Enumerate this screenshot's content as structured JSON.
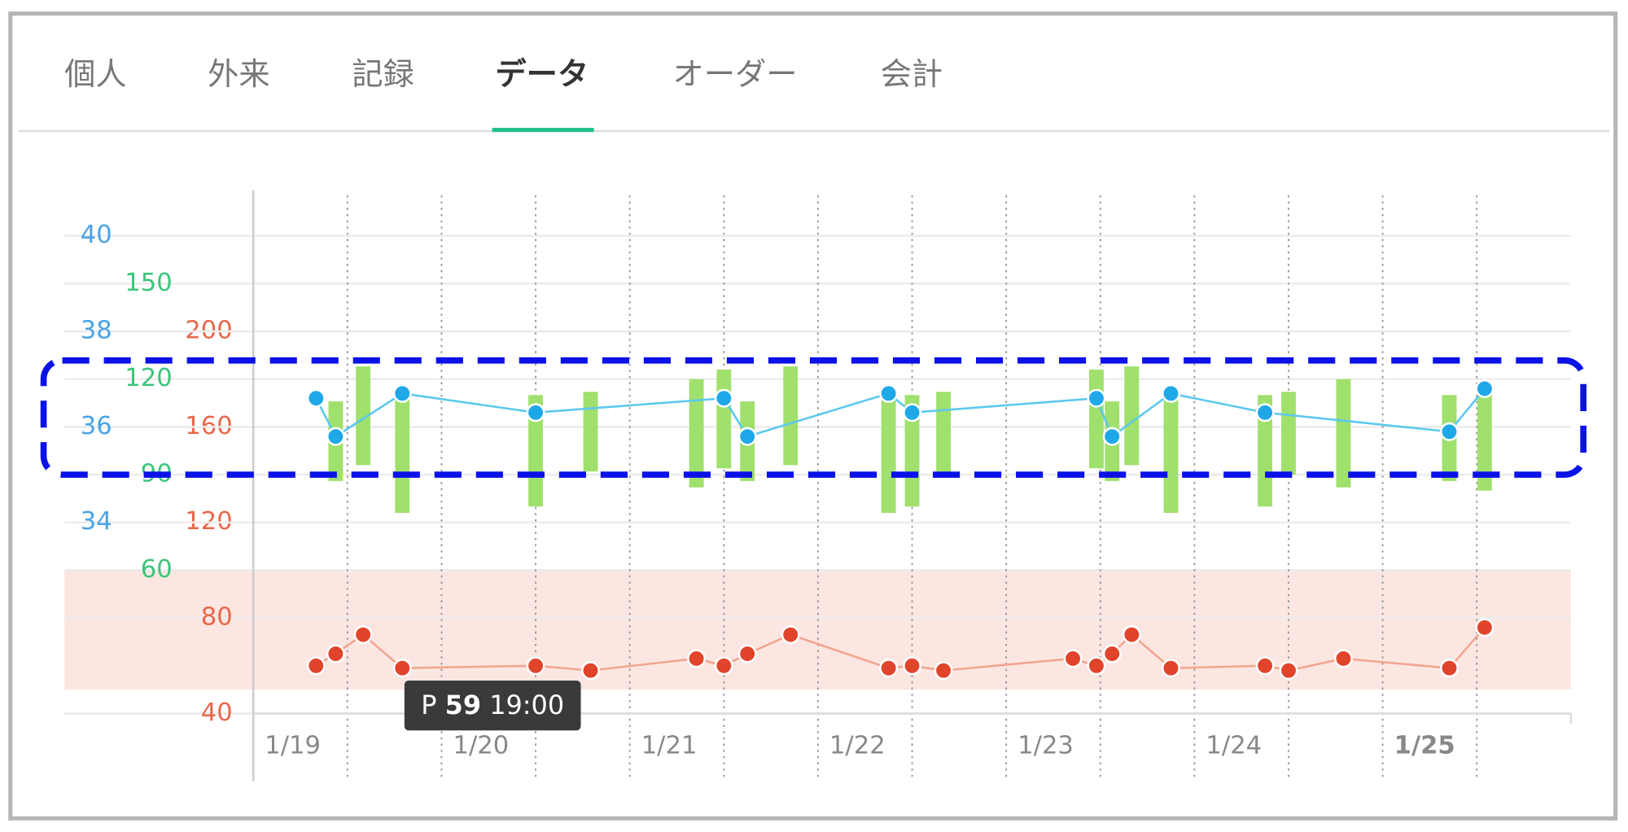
{
  "tabs": [
    "個人",
    "外来",
    "記録",
    "データ",
    "オーダー",
    "会計"
  ],
  "chart_data": {
    "type": "vitals",
    "xlim": [
      "1/19 0:00",
      "1/26 0:00"
    ],
    "xticks": [
      {
        "value": "1/19 0:00",
        "label": "1/19"
      },
      {
        "value": "1/20 0:00",
        "label": "1/20"
      },
      {
        "value": "1/21 0:00",
        "label": "1/21"
      },
      {
        "value": "1/22 0:00",
        "label": "1/22"
      },
      {
        "value": "1/23 0:00",
        "label": "1/23"
      },
      {
        "value": "1/24 0:00",
        "label": "1/24"
      },
      {
        "value": "1/25 0:00",
        "label": "1/25"
      }
    ],
    "xgrid": [
      "1/19 12:00",
      "1/20 0:00",
      "1/20 12:00",
      "1/21 0:00",
      "1/21 12:00",
      "1/22 0:00",
      "1/22 12:00",
      "1/23 0:00",
      "1/23 12:00",
      "1/24 0:00",
      "1/24 12:00",
      "1/25 0:00",
      "1/25 12:00"
    ],
    "today": "1/25 0:00",
    "today_color": "#5cbf3a",
    "ylim": [
      40,
      240
    ],
    "yticks": [
      40,
      80,
      120,
      160,
      200
    ],
    "ycolor": "#e8674a",
    "y2lim": [
      30,
      40
    ],
    "y2ticks": [
      34,
      36,
      38,
      40
    ],
    "y2color": "#4aa3e6",
    "y3lim": [
      15,
      165
    ],
    "y3ticks": [
      60,
      90,
      120,
      150
    ],
    "y3color": "#3cc47c",
    "grid": true,
    "normal_range": [
      50,
      100
    ],
    "normal_range_color": "#fce6e2",
    "series": [
      {
        "type": "line",
        "axis": "y2",
        "color": "#5bc8ef",
        "marker_color": "#1ea8e8",
        "x": [
          "1/19 8:00",
          "1/19 10:30",
          "1/19 19:00",
          "1/20 12:00",
          "1/21 12:00",
          "1/21 15:00",
          "1/22 9:00",
          "1/22 12:00",
          "1/23 11:30",
          "1/23 13:30",
          "1/23 21:00",
          "1/24 9:00",
          "1/25 8:30",
          "1/25 13:00"
        ],
        "values": [
          36.6,
          35.8,
          36.7,
          36.3,
          36.6,
          35.8,
          36.7,
          36.3,
          36.6,
          35.8,
          36.7,
          36.3,
          35.9,
          36.8
        ]
      },
      {
        "type": "line",
        "axis": "y",
        "color": "#f2a58f",
        "marker_color": "#e0442b",
        "x": [
          "1/19 8:00",
          "1/19 10:30",
          "1/19 14:00",
          "1/19 19:00",
          "1/20 12:00",
          "1/20 19:00",
          "1/21 8:30",
          "1/21 12:00",
          "1/21 15:00",
          "1/21 20:30",
          "1/22 9:00",
          "1/22 12:00",
          "1/22 16:00",
          "1/23 8:30",
          "1/23 11:30",
          "1/23 13:30",
          "1/23 16:00",
          "1/23 21:00",
          "1/24 9:00",
          "1/24 12:00",
          "1/24 19:00",
          "1/25 8:30",
          "1/25 13:00"
        ],
        "values": [
          60,
          65,
          73,
          59,
          60,
          58,
          63,
          60,
          65,
          73,
          59,
          60,
          58,
          63,
          60,
          65,
          73,
          59,
          60,
          58,
          63,
          59,
          76
        ]
      },
      {
        "type": "bar",
        "axis": "y3",
        "color": "#a0e06c",
        "x": [
          "1/19 10:30",
          "1/19 14:00",
          "1/19 19:00",
          "1/20 12:00",
          "1/20 19:00",
          "1/21 8:30",
          "1/21 12:00",
          "1/21 15:00",
          "1/21 20:30",
          "1/22 9:00",
          "1/22 12:00",
          "1/22 16:00",
          "1/23 11:30",
          "1/23 13:30",
          "1/23 16:00",
          "1/23 21:00",
          "1/24 9:00",
          "1/24 12:00",
          "1/24 19:00",
          "1/25 8:30",
          "1/25 13:00"
        ],
        "high": [
          113,
          124,
          116,
          115,
          116,
          120,
          123,
          113,
          124,
          116,
          115,
          116,
          123,
          113,
          124,
          116,
          115,
          116,
          120,
          115,
          117
        ],
        "low": [
          88,
          93,
          78,
          80,
          91,
          86,
          92,
          88,
          93,
          78,
          80,
          90,
          92,
          88,
          93,
          78,
          80,
          90,
          86,
          88,
          85
        ]
      }
    ],
    "tooltip": {
      "label": "P",
      "value": 59,
      "time": "19:00"
    }
  }
}
